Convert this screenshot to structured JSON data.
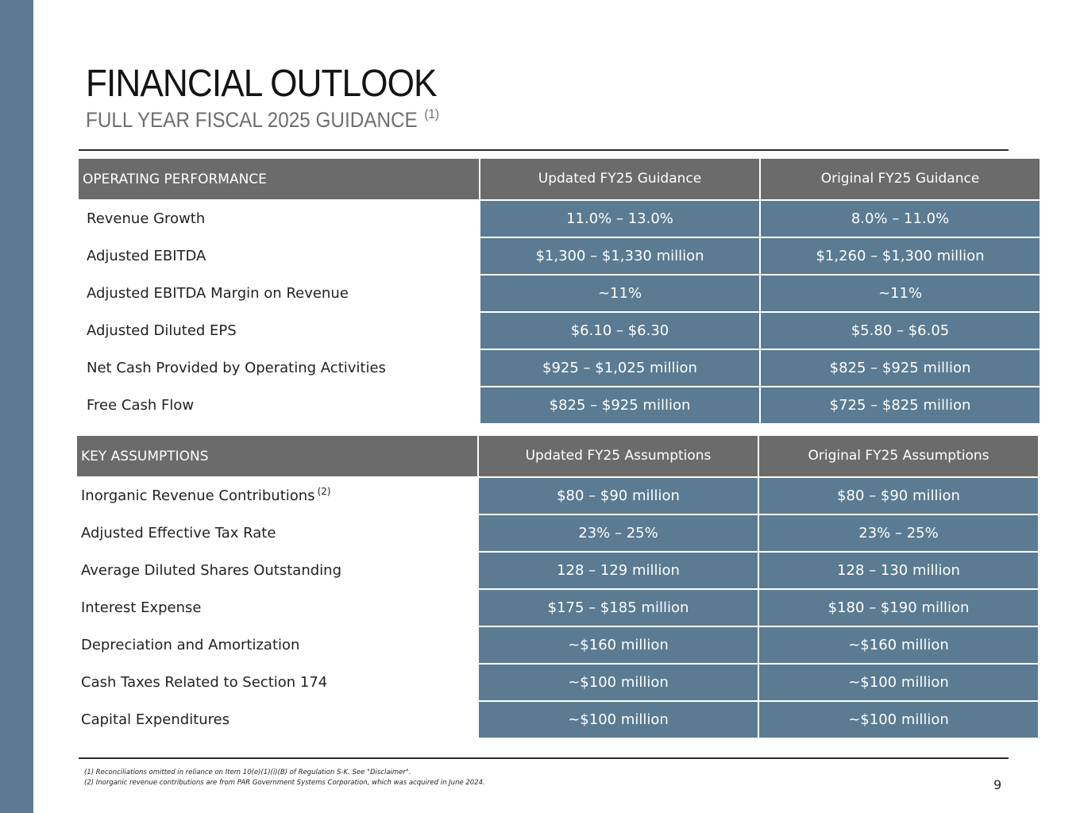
{
  "header": {
    "title": "FINANCIAL OUTLOOK",
    "subtitle": "FULL YEAR FISCAL 2025 GUIDANCE",
    "subtitle_note": "(1)"
  },
  "operating": {
    "heading": "OPERATING PERFORMANCE",
    "col_updated": "Updated FY25 Guidance",
    "col_original": "Original FY25 Guidance",
    "rows": [
      {
        "label": "Revenue Growth",
        "updated": "11.0% – 13.0%",
        "original": "8.0% – 11.0%"
      },
      {
        "label": "Adjusted EBITDA",
        "updated": "$1,300 – $1,330 million",
        "original": "$1,260 – $1,300 million"
      },
      {
        "label": "Adjusted EBITDA Margin on Revenue",
        "updated": "~11%",
        "original": "~11%"
      },
      {
        "label": "Adjusted Diluted EPS",
        "updated": "$6.10 – $6.30",
        "original": "$5.80 – $6.05"
      },
      {
        "label": "Net Cash Provided by Operating Activities",
        "updated": "$925 – $1,025 million",
        "original": "$825 – $925 million"
      },
      {
        "label": "Free Cash Flow",
        "updated": "$825 – $925 million",
        "original": "$725 – $825 million"
      }
    ]
  },
  "assumptions": {
    "heading": "KEY ASSUMPTIONS",
    "col_updated": "Updated FY25 Assumptions",
    "col_original": "Original FY25 Assumptions",
    "rows": [
      {
        "label": "Inorganic Revenue Contributions",
        "note": "(2)",
        "updated": "$80 – $90 million",
        "original": "$80 – $90 million"
      },
      {
        "label": "Adjusted Effective Tax Rate",
        "updated": "23% – 25%",
        "original": "23% – 25%"
      },
      {
        "label": "Average Diluted Shares Outstanding",
        "updated": "128 – 129 million",
        "original": "128 – 130 million"
      },
      {
        "label": "Interest Expense",
        "updated": "$175 – $185 million",
        "original": "$180 – $190 million"
      },
      {
        "label": "Depreciation and Amortization",
        "updated": "~$160 million",
        "original": "~$160 million"
      },
      {
        "label": "Cash Taxes Related to Section 174",
        "updated": "~$100 million",
        "original": "~$100 million"
      },
      {
        "label": "Capital Expenditures",
        "updated": "~$100 million",
        "original": "~$100 million"
      }
    ]
  },
  "footnotes": [
    "(1) Reconciliations omitted in reliance on Item 10(e)(1)(i)(B) of Regulation S-K. See \"Disclaimer\".",
    "(2) Inorganic revenue contributions are from PAR Government Systems Corporation, which was acquired in June 2024."
  ],
  "page_number": "9",
  "colors": {
    "accent": "#5a7b92",
    "header_gray": "#6b6b6b"
  }
}
